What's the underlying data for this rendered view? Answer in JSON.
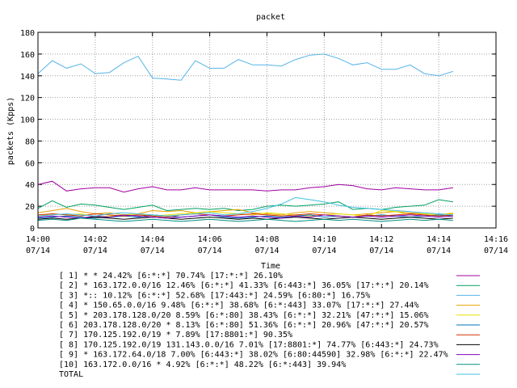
{
  "chart_data": {
    "type": "line",
    "title": "packet",
    "xlabel": "Time",
    "ylabel": "packets (Kpps)",
    "ylim": [
      0,
      180
    ],
    "yticks": [
      0,
      20,
      40,
      60,
      80,
      100,
      120,
      140,
      160,
      180
    ],
    "xlim": [
      "14:00",
      "14:16"
    ],
    "xticks": [
      {
        "time": "14:00",
        "date": "07/14"
      },
      {
        "time": "14:02",
        "date": "07/14"
      },
      {
        "time": "14:04",
        "date": "07/14"
      },
      {
        "time": "14:06",
        "date": "07/14"
      },
      {
        "time": "14:08",
        "date": "07/14"
      },
      {
        "time": "14:10",
        "date": "07/14"
      },
      {
        "time": "14:12",
        "date": "07/14"
      },
      {
        "time": "14:14",
        "date": "07/14"
      },
      {
        "time": "14:16",
        "date": "07/14"
      }
    ],
    "grid": true,
    "legend_position": "bottom",
    "x_minutes": [
      0,
      0.5,
      1,
      1.5,
      2,
      2.5,
      3,
      3.5,
      4,
      4.5,
      5,
      5.5,
      6,
      6.5,
      7,
      7.5,
      8,
      8.5,
      9,
      9.5,
      10,
      10.5,
      11,
      11.5,
      12,
      12.5,
      13,
      13.5,
      14,
      14.5
    ],
    "series": [
      {
        "name": "[ 1] * * 24.42%  [6:*:*] 70.74% [17:*:*] 26.10%",
        "color": "#a000a0",
        "values": [
          40,
          43,
          34,
          36,
          37,
          37,
          33,
          36,
          38,
          35,
          35,
          37,
          35,
          35,
          35,
          35,
          34,
          35,
          35,
          37,
          38,
          40,
          39,
          36,
          35,
          37,
          36,
          35,
          35,
          37
        ]
      },
      {
        "name": "[ 2] * 163.172.0.0/16 12.46%  [6:*:*] 41.33% [6:443:*] 36.05% [17:*:*] 20.14%",
        "color": "#00a060",
        "values": [
          18,
          25,
          19,
          22,
          21,
          19,
          17,
          19,
          21,
          16,
          17,
          18,
          17,
          18,
          16,
          17,
          20,
          21,
          20,
          21,
          22,
          24,
          17,
          18,
          17,
          19,
          20,
          21,
          26,
          24
        ]
      },
      {
        "name": "[ 3] *:: 10.12%  [6:*:*] 52.68% [17:443:*] 24.59% [6:80:*] 16.75%",
        "color": "#56b4e9",
        "values": [
          142,
          154,
          147,
          151,
          142,
          143,
          152,
          158,
          138,
          137,
          136,
          154,
          147,
          147,
          155,
          150,
          150,
          149,
          155,
          159,
          160,
          156,
          150,
          152,
          146,
          146,
          150,
          142,
          140,
          144
        ]
      },
      {
        "name": "[ 4] * 150.65.0.0/16 9.48%  [6:*:*] 38.68% [6:*:443] 33.07% [17:*:*] 27.44%",
        "color": "#e6a000",
        "values": [
          14,
          16,
          18,
          15,
          13,
          14,
          12,
          13,
          16,
          15,
          16,
          14,
          15,
          16,
          17,
          14,
          13,
          12,
          14,
          15,
          14,
          13,
          12,
          13,
          14,
          15,
          14,
          13,
          12,
          13
        ]
      },
      {
        "name": "[ 5] * 203.178.128.0/20 8.59%  [6:*:80] 38.43% [6:*:*] 32.21% [47:*:*] 15.06%",
        "color": "#e8e000",
        "values": [
          11,
          13,
          12,
          13,
          10,
          11,
          12,
          13,
          11,
          12,
          13,
          14,
          15,
          14,
          13,
          12,
          14,
          13,
          12,
          11,
          12,
          13,
          12,
          11,
          16,
          15,
          12,
          13,
          12,
          14
        ]
      },
      {
        "name": "[ 6] 203.178.128.0/20 * 8.13%  [6:*:80] 51.36% [6:*:*] 20.96% [47:*:*] 20.57%",
        "color": "#0070c0",
        "values": [
          9,
          10,
          11,
          10,
          9,
          10,
          11,
          10,
          12,
          11,
          10,
          11,
          12,
          10,
          9,
          10,
          11,
          10,
          11,
          12,
          10,
          11,
          10,
          11,
          12,
          11,
          10,
          11,
          12,
          11
        ]
      },
      {
        "name": "[ 7] 170.125.192.0/19 * 7.89%  [17:8801:*] 90.35%",
        "color": "#d03000",
        "values": [
          12,
          13,
          12,
          11,
          13,
          12,
          11,
          12,
          11,
          10,
          12,
          13,
          12,
          11,
          12,
          13,
          12,
          11,
          12,
          13,
          12,
          11,
          10,
          12,
          11,
          12,
          13,
          12,
          11,
          12
        ]
      },
      {
        "name": "[ 8] 170.125.192.0/19 131.143.0.0/16 7.01%  [17:8801:*] 74.77% [6:443:*] 24.73%",
        "color": "#000000",
        "values": [
          8,
          9,
          8,
          9,
          10,
          9,
          8,
          9,
          10,
          9,
          8,
          9,
          10,
          9,
          8,
          9,
          8,
          9,
          10,
          9,
          8,
          9,
          10,
          9,
          8,
          9,
          10,
          9,
          8,
          9
        ]
      },
      {
        "name": "[ 9] * 163.172.64.0/18 7.00%  [6:443:*] 38.02% [6:80:44590] 32.98% [6:*:*] 22.47%",
        "color": "#8000c0",
        "values": [
          10,
          11,
          10,
          9,
          11,
          10,
          12,
          11,
          10,
          9,
          10,
          11,
          12,
          11,
          10,
          11,
          10,
          9,
          11,
          10,
          12,
          11,
          10,
          11,
          10,
          11,
          12,
          11,
          10,
          11
        ]
      },
      {
        "name": "[10] 163.172.0.0/16 * 4.92%  [6:*:*] 48.22% [6:*:443] 39.94%",
        "color": "#009080",
        "values": [
          7,
          8,
          7,
          9,
          8,
          7,
          6,
          7,
          8,
          7,
          6,
          7,
          8,
          7,
          6,
          7,
          8,
          7,
          6,
          7,
          8,
          7,
          8,
          7,
          6,
          7,
          8,
          7,
          8,
          7
        ]
      },
      {
        "name": "TOTAL",
        "color": "#40c0e0",
        "values": [
          11,
          12,
          13,
          12,
          11,
          13,
          14,
          13,
          12,
          11,
          12,
          13,
          14,
          12,
          13,
          15,
          18,
          22,
          28,
          26,
          24,
          21,
          19,
          18,
          17,
          16,
          15,
          14,
          13,
          12
        ]
      }
    ]
  }
}
